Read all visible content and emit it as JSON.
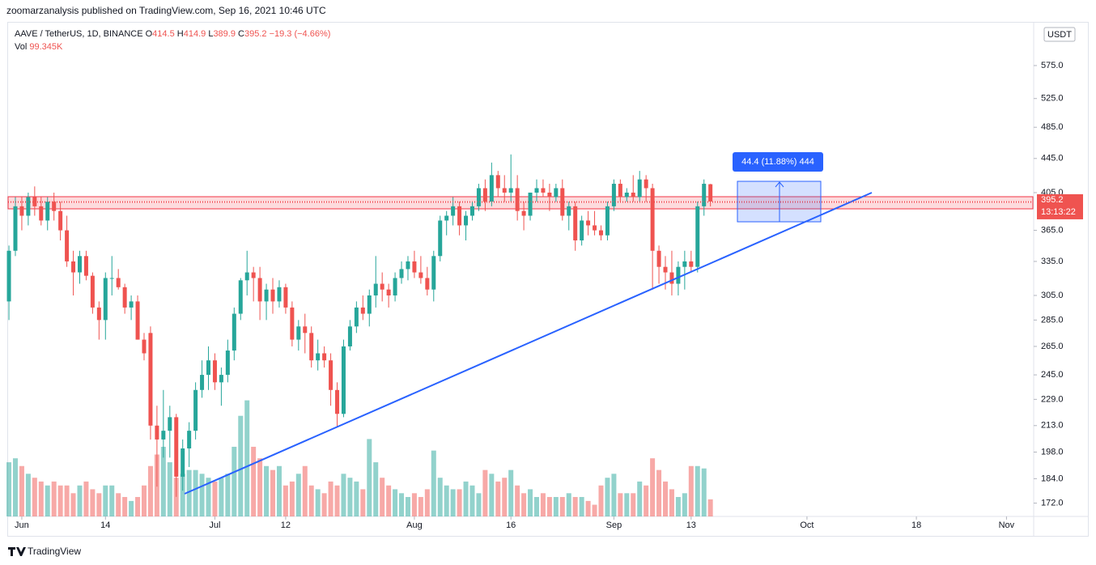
{
  "chart_data": {
    "type": "candlestick",
    "published": "zoomarzanalysis published on TradingView.com, Sep 16, 2021 10:46 UTC",
    "symbol": "AAVE / TetherUS, 1D, BINANCE",
    "legend_keys": [
      "O",
      "H",
      "L",
      "C"
    ],
    "change": "−19.3 (−4.66%)",
    "volume_name": "Vol",
    "volume_value_label": "99.345K",
    "currency": "USDT",
    "countdown": "13:13:22",
    "measure_label": "44.4 (11.88%) 444",
    "footer": "TradingView",
    "log_scale": true,
    "up_color": "#26a69a",
    "down_color": "#ef5350",
    "open": [
      300,
      345,
      390,
      380,
      400,
      390,
      375,
      395,
      385,
      365,
      335,
      325,
      340,
      322,
      295,
      285,
      320,
      320,
      312,
      295,
      300,
      270,
      275,
      213,
      205,
      210,
      218,
      185,
      200,
      210,
      235,
      245,
      255,
      240,
      245,
      262,
      290,
      318,
      325,
      320,
      300,
      310,
      300,
      312,
      295,
      270,
      280,
      275,
      255,
      260,
      255,
      235,
      220,
      265,
      280,
      295,
      290,
      305,
      315,
      310,
      305,
      320,
      328,
      335,
      325,
      320,
      310,
      340,
      375,
      380,
      390,
      370,
      380,
      390,
      410,
      395,
      425,
      410,
      405,
      410,
      385,
      380,
      405,
      410,
      405,
      400,
      410,
      380,
      390,
      355,
      375,
      370,
      365,
      360,
      390,
      415,
      400,
      405,
      400,
      420,
      410,
      345,
      330,
      325,
      315,
      330,
      335,
      330,
      390,
      414.5
    ],
    "high": [
      350,
      400,
      400,
      405,
      412,
      400,
      400,
      405,
      395,
      380,
      345,
      345,
      345,
      325,
      300,
      325,
      340,
      328,
      315,
      305,
      305,
      275,
      280,
      225,
      235,
      225,
      220,
      205,
      215,
      240,
      255,
      265,
      260,
      250,
      270,
      295,
      320,
      345,
      330,
      330,
      315,
      320,
      318,
      315,
      300,
      285,
      290,
      280,
      270,
      265,
      260,
      240,
      270,
      285,
      300,
      305,
      310,
      340,
      325,
      315,
      325,
      335,
      340,
      345,
      340,
      330,
      345,
      380,
      385,
      400,
      395,
      385,
      395,
      415,
      420,
      440,
      430,
      425,
      450,
      425,
      395,
      405,
      420,
      420,
      415,
      415,
      420,
      395,
      395,
      380,
      385,
      385,
      370,
      395,
      420,
      420,
      410,
      425,
      430,
      425,
      415,
      350,
      340,
      345,
      335,
      345,
      345,
      395,
      420,
      414.9
    ],
    "low": [
      285,
      340,
      365,
      370,
      380,
      370,
      365,
      375,
      355,
      330,
      305,
      315,
      318,
      290,
      270,
      270,
      305,
      310,
      290,
      285,
      270,
      255,
      205,
      180,
      195,
      195,
      175,
      178,
      190,
      205,
      230,
      235,
      235,
      225,
      240,
      255,
      285,
      305,
      300,
      285,
      285,
      290,
      295,
      290,
      265,
      262,
      260,
      250,
      248,
      250,
      225,
      212,
      218,
      262,
      275,
      285,
      280,
      295,
      300,
      295,
      300,
      315,
      318,
      320,
      315,
      305,
      300,
      335,
      360,
      370,
      360,
      355,
      375,
      385,
      385,
      390,
      400,
      395,
      395,
      375,
      365,
      375,
      395,
      400,
      385,
      395,
      375,
      365,
      345,
      350,
      360,
      360,
      355,
      355,
      385,
      395,
      395,
      395,
      395,
      395,
      310,
      315,
      310,
      305,
      305,
      310,
      325,
      325,
      380,
      389.9
    ],
    "close": [
      345,
      390,
      380,
      400,
      390,
      375,
      395,
      385,
      365,
      335,
      325,
      340,
      322,
      295,
      285,
      320,
      320,
      312,
      295,
      300,
      270,
      260,
      213,
      205,
      210,
      218,
      185,
      200,
      210,
      235,
      245,
      255,
      240,
      245,
      262,
      290,
      318,
      325,
      320,
      300,
      310,
      300,
      312,
      295,
      270,
      280,
      275,
      255,
      260,
      255,
      235,
      220,
      265,
      280,
      295,
      290,
      305,
      315,
      310,
      305,
      320,
      328,
      335,
      325,
      320,
      310,
      340,
      375,
      380,
      390,
      370,
      380,
      390,
      410,
      395,
      425,
      410,
      405,
      410,
      385,
      380,
      405,
      410,
      405,
      400,
      410,
      380,
      390,
      355,
      375,
      370,
      365,
      360,
      390,
      415,
      400,
      405,
      400,
      420,
      410,
      345,
      330,
      325,
      315,
      330,
      335,
      330,
      390,
      415,
      395.2
    ],
    "volume": [
      315,
      338,
      293,
      248,
      225,
      203,
      180,
      203,
      180,
      180,
      135,
      180,
      203,
      158,
      135,
      180,
      180,
      135,
      113,
      90,
      113,
      180,
      293,
      360,
      405,
      315,
      225,
      248,
      270,
      270,
      248,
      225,
      203,
      225,
      248,
      405,
      585,
      675,
      405,
      338,
      293,
      270,
      293,
      180,
      203,
      248,
      293,
      180,
      158,
      135,
      203,
      180,
      248,
      225,
      203,
      158,
      450,
      315,
      225,
      180,
      158,
      135,
      113,
      135,
      113,
      158,
      383,
      225,
      180,
      158,
      158,
      203,
      180,
      135,
      270,
      248,
      203,
      225,
      270,
      180,
      135,
      158,
      113,
      135,
      113,
      113,
      113,
      135,
      113,
      113,
      90,
      68,
      180,
      225,
      248,
      135,
      135,
      135,
      203,
      180,
      338,
      270,
      203,
      158,
      113,
      135,
      293,
      293,
      279,
      99.345
    ],
    "vlim": [
      0,
      2871
    ],
    "xlim": [
      -0.13,
      159.1
    ],
    "xticks": [
      {
        "value": 2,
        "label": "Jun"
      },
      {
        "value": 15,
        "label": "14"
      },
      {
        "value": 32,
        "label": "Jul"
      },
      {
        "value": 43,
        "label": "12"
      },
      {
        "value": 63,
        "label": "Aug"
      },
      {
        "value": 78,
        "label": "16"
      },
      {
        "value": 94,
        "label": "Sep"
      },
      {
        "value": 106,
        "label": "13"
      },
      {
        "value": 124,
        "label": "Oct"
      },
      {
        "value": 141,
        "label": "18"
      },
      {
        "value": 155,
        "label": "Nov"
      }
    ],
    "ylim": [
      165.8,
      647.2
    ],
    "yticks": [
      {
        "value": 575,
        "label": "575.0"
      },
      {
        "value": 525,
        "label": "525.0"
      },
      {
        "value": 485,
        "label": "485.0"
      },
      {
        "value": 445,
        "label": "445.0"
      },
      {
        "value": 405,
        "label": "405.0"
      },
      {
        "value": 365,
        "label": "365.0"
      },
      {
        "value": 335,
        "label": "335.0"
      },
      {
        "value": 305,
        "label": "305.0"
      },
      {
        "value": 285,
        "label": "285.0"
      },
      {
        "value": 265,
        "label": "265.0"
      },
      {
        "value": 245,
        "label": "245.0"
      },
      {
        "value": 229,
        "label": "229.0"
      },
      {
        "value": 213,
        "label": "213.0"
      },
      {
        "value": 198,
        "label": "198.0"
      },
      {
        "value": 184,
        "label": "184.0"
      },
      {
        "value": 172,
        "label": "172.0"
      }
    ]
  }
}
